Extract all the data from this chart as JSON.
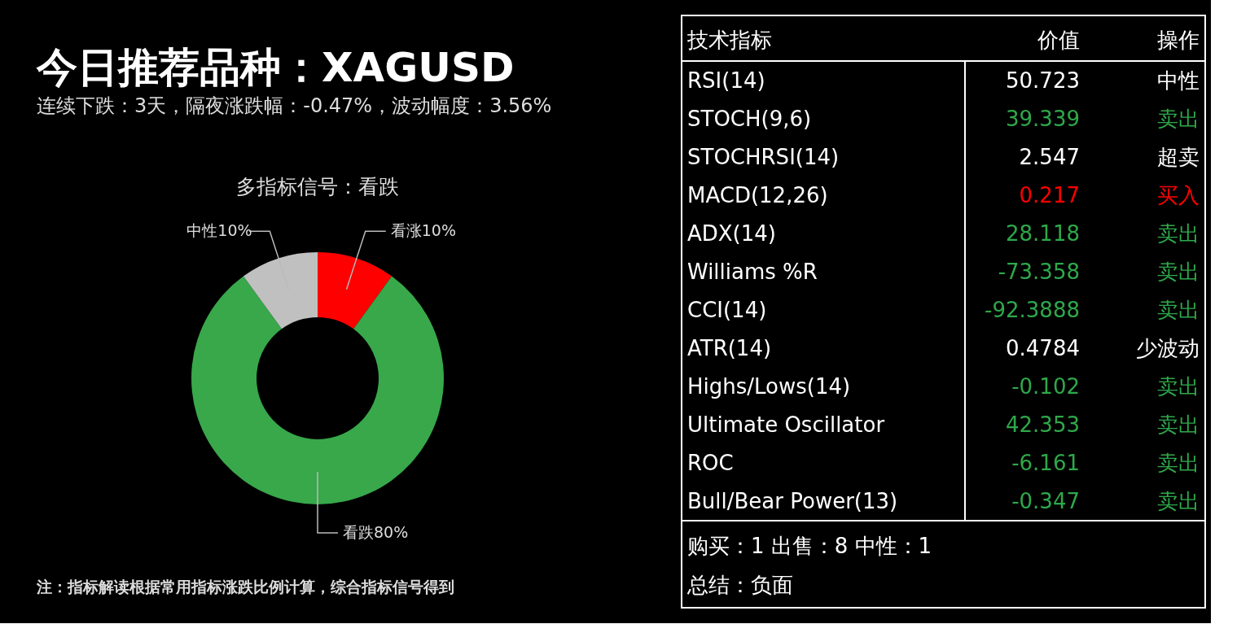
{
  "chart_data": [
    {
      "type": "donut",
      "title": "今日推荐品种：XAGUSD",
      "subtitle": "连续下跌：3天，隔夜涨跌幅：-0.47%，波动幅度：3.56%",
      "categories": [
        "看涨",
        "看跌",
        "中性"
      ],
      "values": [
        10,
        80,
        10
      ],
      "value_labels": [
        "10%",
        "80%",
        "10%"
      ],
      "colors": [
        "#ff0000",
        "#38a84a",
        "#c0c0c0"
      ],
      "annotations": [
        "多指标信号：看跌",
        "注：指标解读根据常用指标涨跌比例计算，综合指标信号得到"
      ]
    },
    {
      "type": "other",
      "categories": [
        "技术指标",
        "价值",
        "操作"
      ],
      "cell_labels": [
        [
          "RSI(14)",
          "50.723",
          "中性"
        ],
        [
          "STOCH(9,6)",
          "39.339",
          "卖出"
        ],
        [
          "STOCHRSI(14)",
          "2.547",
          "超卖"
        ],
        [
          "MACD(12,26)",
          "0.217",
          "买入"
        ],
        [
          "ADX(14)",
          "28.118",
          "卖出"
        ],
        [
          "Williams %R",
          "-73.358",
          "卖出"
        ],
        [
          "CCI(14)",
          "-92.3888",
          "卖出"
        ],
        [
          "ATR(14)",
          "0.4784",
          "少波动"
        ],
        [
          "Highs/Lows(14)",
          "-0.102",
          "卖出"
        ],
        [
          "Ultimate Oscillator",
          "42.353",
          "卖出"
        ],
        [
          "ROC",
          "-6.161",
          "卖出"
        ],
        [
          "Bull/Bear Power(13)",
          "-0.347",
          "卖出"
        ]
      ],
      "colors": [
        "#ffffff",
        "#2ea84a",
        "#ffffff",
        "#ff0000",
        "#2ea84a",
        "#2ea84a",
        "#2ea84a",
        "#ffffff",
        "#2ea84a",
        "#2ea84a",
        "#2ea84a",
        "#2ea84a"
      ],
      "annotations": [
        "购买：1 出售：8 中性：1",
        "总结：负面"
      ]
    }
  ]
}
